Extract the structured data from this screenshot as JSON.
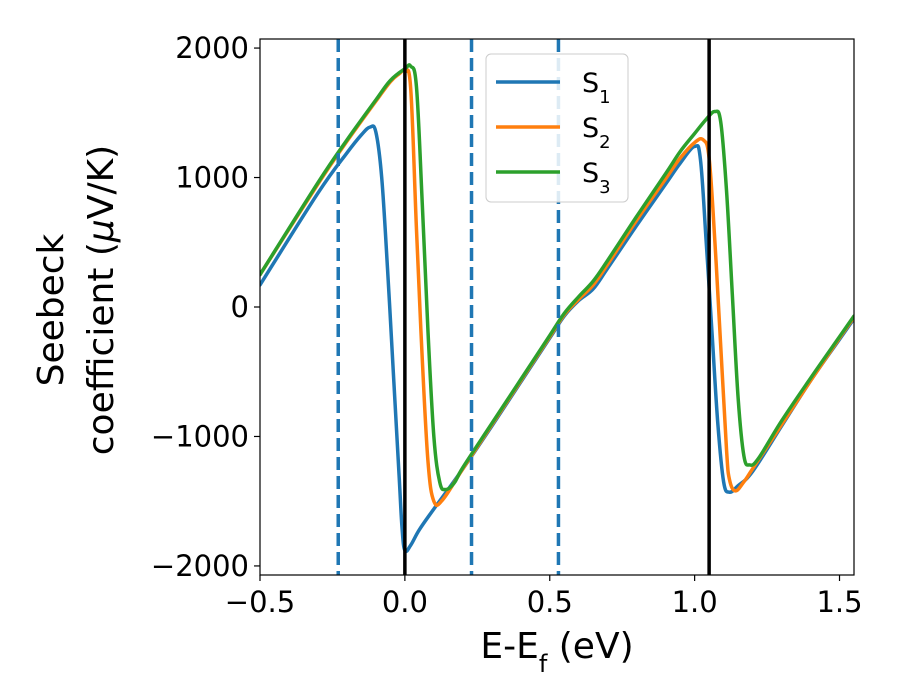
{
  "chart_data": {
    "type": "line",
    "xlabel": {
      "main": "E-E",
      "sub": "f",
      "unit": " (eV)"
    },
    "ylabel": {
      "line1": "Seebeck",
      "line2": "coefficient  (",
      "mu": "μ",
      "unit": "V/K)"
    },
    "xlim": [
      -0.5,
      1.55
    ],
    "ylim": [
      -2070,
      2070
    ],
    "xticks": [
      -0.5,
      0.0,
      0.5,
      1.0,
      1.5
    ],
    "xtick_labels": [
      "−0.5",
      "0.0",
      "0.5",
      "1.0",
      "1.5"
    ],
    "yticks": [
      -2000,
      -1000,
      0,
      1000,
      2000
    ],
    "ytick_labels": [
      "−2000",
      "−1000",
      "0",
      "1000",
      "2000"
    ],
    "grid": false,
    "legend_position": "top-center",
    "vlines_solid": [
      0.0,
      1.05
    ],
    "vlines_dashed": [
      -0.23,
      0.23,
      0.53
    ],
    "vline_solid_color": "#000000",
    "vline_dashed_color": "#1f77b4",
    "series": [
      {
        "name": "S",
        "sub": "1",
        "color": "#1f77b4",
        "points": [
          [
            -0.5,
            170
          ],
          [
            -0.3,
            880
          ],
          [
            -0.2,
            1190
          ],
          [
            -0.15,
            1330
          ],
          [
            -0.12,
            1390
          ],
          [
            -0.1,
            1350
          ],
          [
            -0.08,
            1000
          ],
          [
            -0.06,
            300
          ],
          [
            -0.04,
            -500
          ],
          [
            -0.02,
            -1300
          ],
          [
            -0.01,
            -1700
          ],
          [
            0.0,
            -1880
          ],
          [
            0.02,
            -1840
          ],
          [
            0.05,
            -1720
          ],
          [
            0.1,
            -1560
          ],
          [
            0.2,
            -1250
          ],
          [
            0.3,
            -920
          ],
          [
            0.4,
            -580
          ],
          [
            0.5,
            -240
          ],
          [
            0.55,
            -70
          ],
          [
            0.6,
            50
          ],
          [
            0.65,
            140
          ],
          [
            0.7,
            300
          ],
          [
            0.8,
            630
          ],
          [
            0.9,
            950
          ],
          [
            0.95,
            1110
          ],
          [
            1.0,
            1240
          ],
          [
            1.02,
            1140
          ],
          [
            1.04,
            500
          ],
          [
            1.06,
            -200
          ],
          [
            1.08,
            -900
          ],
          [
            1.1,
            -1350
          ],
          [
            1.12,
            -1430
          ],
          [
            1.15,
            -1380
          ],
          [
            1.2,
            -1270
          ],
          [
            1.3,
            -920
          ],
          [
            1.4,
            -570
          ],
          [
            1.5,
            -250
          ],
          [
            1.55,
            -90
          ]
        ]
      },
      {
        "name": "S",
        "sub": "2",
        "color": "#ff7f0e",
        "points": [
          [
            -0.5,
            250
          ],
          [
            -0.3,
            950
          ],
          [
            -0.2,
            1280
          ],
          [
            -0.1,
            1590
          ],
          [
            -0.05,
            1740
          ],
          [
            -0.02,
            1800
          ],
          [
            0.0,
            1820
          ],
          [
            0.02,
            1690
          ],
          [
            0.04,
            600
          ],
          [
            0.06,
            -400
          ],
          [
            0.08,
            -1200
          ],
          [
            0.1,
            -1500
          ],
          [
            0.13,
            -1490
          ],
          [
            0.2,
            -1250
          ],
          [
            0.3,
            -910
          ],
          [
            0.4,
            -570
          ],
          [
            0.5,
            -230
          ],
          [
            0.55,
            -60
          ],
          [
            0.6,
            60
          ],
          [
            0.65,
            170
          ],
          [
            0.7,
            330
          ],
          [
            0.8,
            670
          ],
          [
            0.9,
            990
          ],
          [
            0.95,
            1150
          ],
          [
            1.0,
            1270
          ],
          [
            1.03,
            1290
          ],
          [
            1.05,
            1150
          ],
          [
            1.07,
            500
          ],
          [
            1.09,
            -300
          ],
          [
            1.11,
            -1100
          ],
          [
            1.12,
            -1330
          ],
          [
            1.14,
            -1420
          ],
          [
            1.17,
            -1350
          ],
          [
            1.2,
            -1250
          ],
          [
            1.3,
            -910
          ],
          [
            1.4,
            -570
          ],
          [
            1.5,
            -240
          ],
          [
            1.55,
            -80
          ]
        ]
      },
      {
        "name": "S",
        "sub": "3",
        "color": "#2ca02c",
        "points": [
          [
            -0.5,
            250
          ],
          [
            -0.3,
            960
          ],
          [
            -0.2,
            1290
          ],
          [
            -0.1,
            1600
          ],
          [
            -0.05,
            1750
          ],
          [
            0.0,
            1840
          ],
          [
            0.02,
            1860
          ],
          [
            0.04,
            1700
          ],
          [
            0.06,
            800
          ],
          [
            0.08,
            -200
          ],
          [
            0.1,
            -1000
          ],
          [
            0.12,
            -1350
          ],
          [
            0.14,
            -1410
          ],
          [
            0.17,
            -1360
          ],
          [
            0.2,
            -1240
          ],
          [
            0.3,
            -900
          ],
          [
            0.4,
            -560
          ],
          [
            0.5,
            -220
          ],
          [
            0.55,
            -50
          ],
          [
            0.6,
            80
          ],
          [
            0.65,
            200
          ],
          [
            0.7,
            360
          ],
          [
            0.8,
            700
          ],
          [
            0.9,
            1030
          ],
          [
            0.95,
            1200
          ],
          [
            1.0,
            1340
          ],
          [
            1.04,
            1450
          ],
          [
            1.07,
            1510
          ],
          [
            1.09,
            1430
          ],
          [
            1.11,
            900
          ],
          [
            1.13,
            100
          ],
          [
            1.15,
            -700
          ],
          [
            1.17,
            -1150
          ],
          [
            1.19,
            -1220
          ],
          [
            1.22,
            -1170
          ],
          [
            1.3,
            -880
          ],
          [
            1.4,
            -550
          ],
          [
            1.5,
            -230
          ],
          [
            1.55,
            -70
          ]
        ]
      }
    ]
  }
}
